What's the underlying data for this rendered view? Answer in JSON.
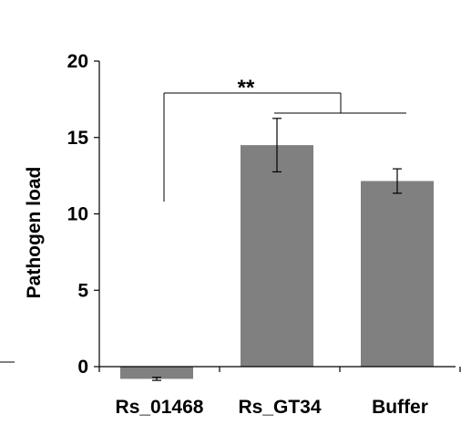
{
  "chart_data": {
    "type": "bar",
    "title": "",
    "xlabel": "",
    "ylabel": "Pathogen load",
    "ylim": [
      0,
      20
    ],
    "yticks": [
      0,
      5,
      10,
      15,
      20
    ],
    "categories": [
      "Rs_01468",
      "Rs_GT34",
      "Buffer"
    ],
    "values": [
      -0.8,
      14.5,
      12.15
    ],
    "errors": [
      0.1,
      1.75,
      0.8
    ],
    "bar_color": "#808080",
    "grid": false,
    "legend": "none",
    "annotations": [
      {
        "text": "**",
        "from": "Rs_01468",
        "to": [
          "Rs_GT34",
          "Buffer"
        ]
      }
    ]
  }
}
